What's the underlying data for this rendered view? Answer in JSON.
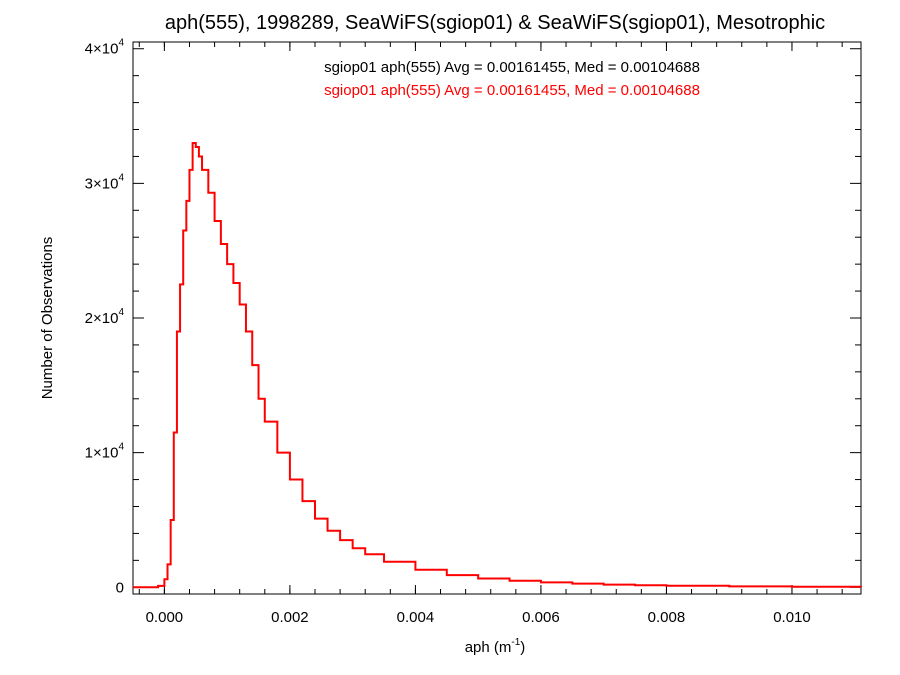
{
  "chart_data": {
    "type": "line",
    "title": "aph(555), 1998289, SeaWiFS(sgiop01) & SeaWiFS(sgiop01), Mesotrophic",
    "xlabel_main": "aph (m",
    "xlabel_sup": "-1",
    "xlabel_close": ")",
    "ylabel": "Number of Observations",
    "xlim": [
      -0.0005,
      0.0111
    ],
    "ylim": [
      -500,
      40500
    ],
    "x_ticks": [
      {
        "value": 0.0,
        "label": "0.000"
      },
      {
        "value": 0.002,
        "label": "0.002"
      },
      {
        "value": 0.004,
        "label": "0.004"
      },
      {
        "value": 0.006,
        "label": "0.006"
      },
      {
        "value": 0.008,
        "label": "0.008"
      },
      {
        "value": 0.01,
        "label": "0.010"
      }
    ],
    "y_ticks": [
      {
        "value": 0,
        "mant": "0",
        "exp": ""
      },
      {
        "value": 10000,
        "mant": "1×10",
        "exp": "4"
      },
      {
        "value": 20000,
        "mant": "2×10",
        "exp": "4"
      },
      {
        "value": 30000,
        "mant": "3×10",
        "exp": "4"
      },
      {
        "value": 40000,
        "mant": "4×10",
        "exp": "4"
      }
    ],
    "legend": [
      {
        "text": "sgiop01 aph(555) Avg = 0.00161455, Med = 0.00104688",
        "color": "#000000"
      },
      {
        "text": "sgiop01 aph(555) Avg = 0.00161455, Med = 0.00104688",
        "color": "#ff0000"
      }
    ],
    "series": [
      {
        "color": "#ff0000",
        "x": [
          -0.0005,
          -0.0002,
          -0.0001,
          0.0,
          5e-05,
          0.0001,
          0.00015,
          0.0002,
          0.00025,
          0.0003,
          0.00035,
          0.0004,
          0.00045,
          0.0005,
          0.00055,
          0.0006,
          0.0007,
          0.0008,
          0.0009,
          0.001,
          0.0011,
          0.0012,
          0.0013,
          0.0014,
          0.0015,
          0.0016,
          0.0018,
          0.002,
          0.0022,
          0.0024,
          0.0026,
          0.0028,
          0.003,
          0.0032,
          0.0035,
          0.004,
          0.0045,
          0.005,
          0.0055,
          0.006,
          0.0065,
          0.007,
          0.0075,
          0.008,
          0.009,
          0.01,
          0.0111
        ],
        "y": [
          0,
          0,
          100,
          600,
          1700,
          5000,
          11500,
          19000,
          22500,
          26500,
          28700,
          31000,
          33000,
          32700,
          32000,
          31000,
          29300,
          27200,
          25500,
          24000,
          22600,
          21000,
          19000,
          16500,
          14000,
          12300,
          10000,
          8000,
          6400,
          5100,
          4200,
          3500,
          2900,
          2450,
          1900,
          1300,
          900,
          650,
          480,
          360,
          270,
          200,
          150,
          110,
          70,
          40,
          20
        ]
      }
    ],
    "grid": false
  }
}
